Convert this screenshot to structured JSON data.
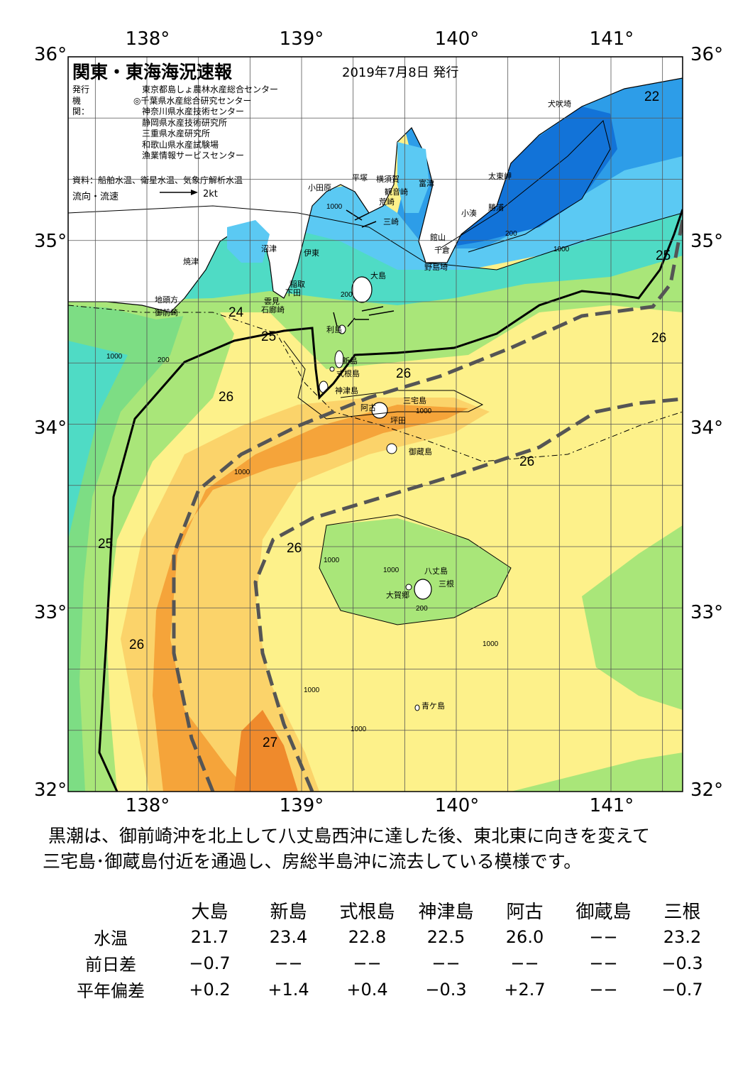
{
  "title": "関東・東海海況速報",
  "issue_date": "2019年7月8日 発行",
  "issuers_label": "発行機関：",
  "issuers": [
    "東京都島しょ農林水産総合センター",
    "◎千葉県水産総合研究センター",
    "神奈川県水産技術センター",
    "静岡県水産技術研究所",
    "三重県水産研究所",
    "和歌山県水産試験場",
    "漁業情報サービスセンター"
  ],
  "source": "資料：船舶水温、衛星水温、気象庁解析水温",
  "legend": {
    "label": "流向・流速",
    "value": "2kt"
  },
  "axes": {
    "lon_labels": [
      "138°",
      "139°",
      "140°",
      "141°"
    ],
    "lat_labels": [
      "36°",
      "35°",
      "34°",
      "33°",
      "32°"
    ]
  },
  "place_names": {
    "inubozaki": "犬吠埼",
    "taitomisaki": "太東岬",
    "katsuura": "勝浦",
    "kominato": "小湊",
    "futtsu": "富津",
    "tateyama": "館山",
    "chikura": "千倉",
    "nojimazaki": "野島埼",
    "hiratsuka": "平塚",
    "yokosuka": "横須賀",
    "kannonzaki": "観音崎",
    "arasaki": "荒崎",
    "odawara": "小田原",
    "misaki": "三崎",
    "numazu": "沼津",
    "ito": "伊東",
    "yaizu": "焼津",
    "inatori": "稲取",
    "shimoda": "下田",
    "mera": "雲見",
    "irozaki": "石廊崎",
    "jitokata": "地頭方",
    "omaezaki": "御前崎",
    "oshima": "大島",
    "toshima": "利島",
    "niijima": "新島",
    "shikinejima": "式根島",
    "kozushima": "神津島",
    "miyakejima": "三宅島",
    "ako": "阿古",
    "tsubota": "坪田",
    "mikurajima": "御蔵島",
    "hachijojima": "八丈島",
    "mitsune": "三根",
    "okago": "大賀郷",
    "aogashima": "青ケ島"
  },
  "isotherm_labels": {
    "t22": "22",
    "t24": "24",
    "t25a": "25",
    "t25b": "25",
    "t25c": "25",
    "t26a": "26",
    "t26b": "26",
    "t26c": "26",
    "t26d": "26",
    "t26e": "26",
    "t26f": "26",
    "t27": "27"
  },
  "depth_labels": {
    "d1000": "1000",
    "d200": "200"
  },
  "summary": [
    "黒潮は、御前崎沖を北上して八丈島西沖に達した後、東北東に向きを変えて",
    "三宅島･御蔵島付近を通過し、房総半島沖に流去している模様です。"
  ],
  "stats": {
    "stations": [
      "大島",
      "新島",
      "式根島",
      "神津島",
      "阿古",
      "御蔵島",
      "三根"
    ],
    "rows": [
      {
        "label": "水温",
        "values": [
          "21.7",
          "23.4",
          "22.8",
          "22.5",
          "26.0",
          "−−",
          "23.2"
        ]
      },
      {
        "label": "前日差",
        "values": [
          "−0.7",
          "−−",
          "−−",
          "−−",
          "−−",
          "−−",
          "−0.3"
        ]
      },
      {
        "label": "平年偏差",
        "values": [
          "+0.2",
          "+1.4",
          "+0.4",
          "−0.3",
          "+2.7",
          "−−",
          "−0.7"
        ]
      }
    ]
  },
  "colors": {
    "t27": "#f5a43a",
    "t26": "#fbd36a",
    "t25": "#fdf18a",
    "t24": "#a9e679",
    "t23": "#7ddd84",
    "t22": "#4fdbc5",
    "t21": "#5bc9f3",
    "t20": "#2d9de8",
    "t19": "#1273d8",
    "land": "#ffffff",
    "grid": "#555555"
  }
}
